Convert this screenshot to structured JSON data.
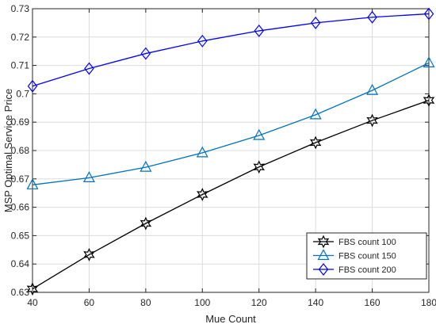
{
  "chart_data": {
    "type": "line",
    "title": "",
    "xlabel": "Mue Count",
    "ylabel": "MSP Optimal Service Price",
    "xlim": [
      40,
      180
    ],
    "ylim": [
      0.63,
      0.73
    ],
    "x": [
      40,
      60,
      80,
      100,
      120,
      140,
      160,
      180
    ],
    "xticks": [
      "40",
      "60",
      "80",
      "100",
      "120",
      "140",
      "160",
      "180"
    ],
    "yticks": [
      "0.63",
      "0.64",
      "0.65",
      "0.66",
      "0.67",
      "0.68",
      "0.69",
      "0.7",
      "0.71",
      "0.72",
      "0.73"
    ],
    "grid": true,
    "legend_position": "bottom-right",
    "series": [
      {
        "name": "FBS count 100",
        "color": "#000000",
        "marker": "hexagram",
        "values": [
          0.6312,
          0.6433,
          0.6543,
          0.6645,
          0.6742,
          0.6828,
          0.6906,
          0.6977
        ]
      },
      {
        "name": "FBS count 150",
        "color": "#0072BD",
        "marker": "triangle",
        "values": [
          0.6679,
          0.6704,
          0.6741,
          0.6792,
          0.6853,
          0.6926,
          0.7012,
          0.7109
        ]
      },
      {
        "name": "FBS count 200",
        "color": "#0000FF",
        "marker": "diamond",
        "values": [
          0.7027,
          0.7089,
          0.7142,
          0.7186,
          0.7222,
          0.725,
          0.727,
          0.7282
        ]
      }
    ]
  }
}
